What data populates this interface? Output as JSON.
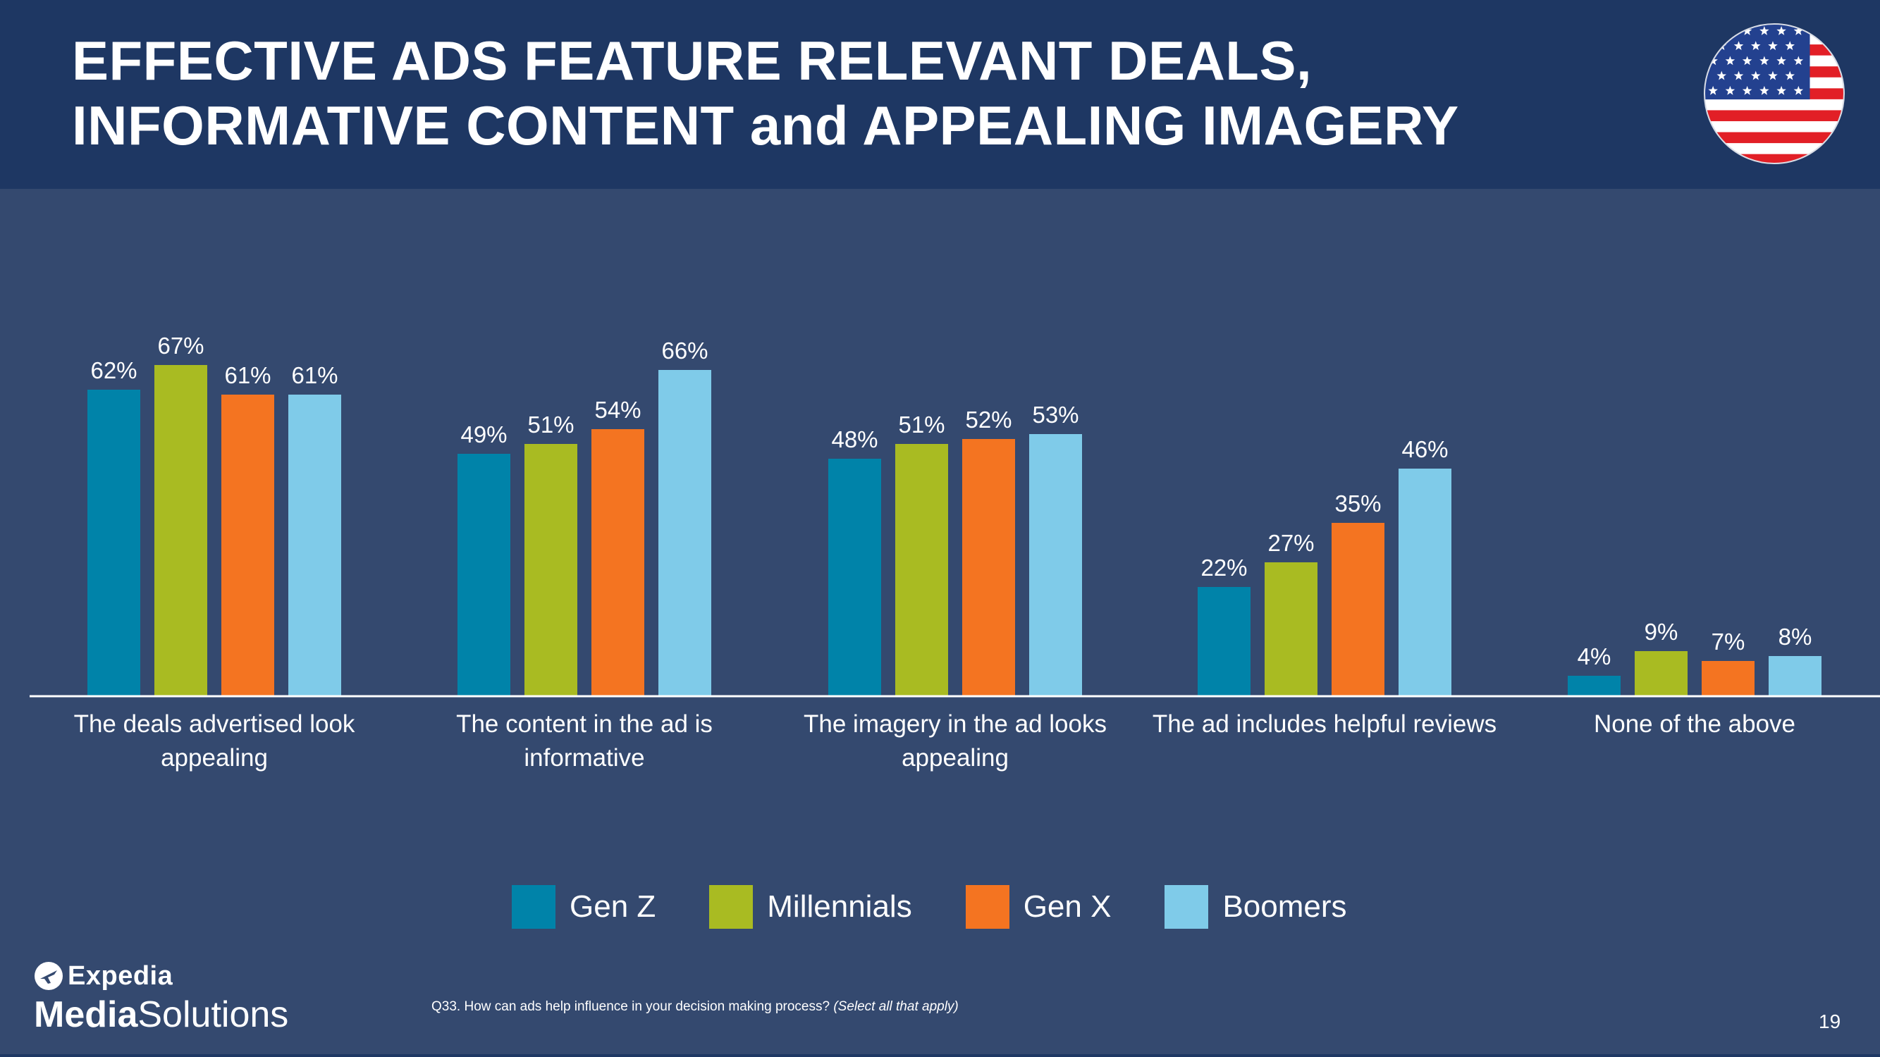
{
  "header": {
    "title_line1": "EFFECTIVE ADS FEATURE RELEVANT DEALS,",
    "title_line2": "INFORMATIVE CONTENT and APPEALING IMAGERY"
  },
  "flag": {
    "icon": "us-flag-icon"
  },
  "chart_data": {
    "type": "bar",
    "title": "",
    "xlabel": "",
    "ylabel": "",
    "ylim": [
      0,
      80
    ],
    "grid": false,
    "legend_position": "bottom",
    "categories": [
      [
        "The deals advertised look",
        "appealing"
      ],
      [
        "The content in the ad is",
        "informative"
      ],
      [
        "The imagery in the ad looks",
        "appealing"
      ],
      [
        "The ad includes helpful reviews"
      ],
      [
        "None of the above"
      ]
    ],
    "series": [
      {
        "name": "Gen Z",
        "color": "#0083a9",
        "values": [
          62,
          49,
          48,
          22,
          4
        ],
        "labels": [
          "62%",
          "49%",
          "48%",
          "22%",
          "4%"
        ]
      },
      {
        "name": "Millennials",
        "color": "#a9bb22",
        "values": [
          67,
          51,
          51,
          27,
          9
        ],
        "labels": [
          "67%",
          "51%",
          "51%",
          "27%",
          "9%"
        ]
      },
      {
        "name": "Gen X",
        "color": "#f47421",
        "values": [
          61,
          54,
          52,
          35,
          7
        ],
        "labels": [
          "61%",
          "54%",
          "52%",
          "35%",
          "7%"
        ]
      },
      {
        "name": "Boomers",
        "color": "#7fcbe9",
        "values": [
          61,
          66,
          53,
          46,
          8
        ],
        "labels": [
          "61%",
          "66%",
          "53%",
          "46%",
          "8%"
        ]
      }
    ]
  },
  "legend": {
    "items": [
      {
        "label": "Gen Z",
        "color": "#0083a9"
      },
      {
        "label": "Millennials",
        "color": "#a9bb22"
      },
      {
        "label": "Gen X",
        "color": "#f47421"
      },
      {
        "label": "Boomers",
        "color": "#7fcbe9"
      }
    ]
  },
  "logo": {
    "brand": "Expedia",
    "media": "Media",
    "solutions": "Solutions",
    "icon": "expedia-plane-icon"
  },
  "footnote": {
    "question": "Q33. How can ads help influence in your decision making process?",
    "note": "(Select all that apply)"
  },
  "page_number": "19",
  "colors": {
    "background": "#34496f",
    "header": "#1e3763",
    "text": "#ffffff"
  }
}
